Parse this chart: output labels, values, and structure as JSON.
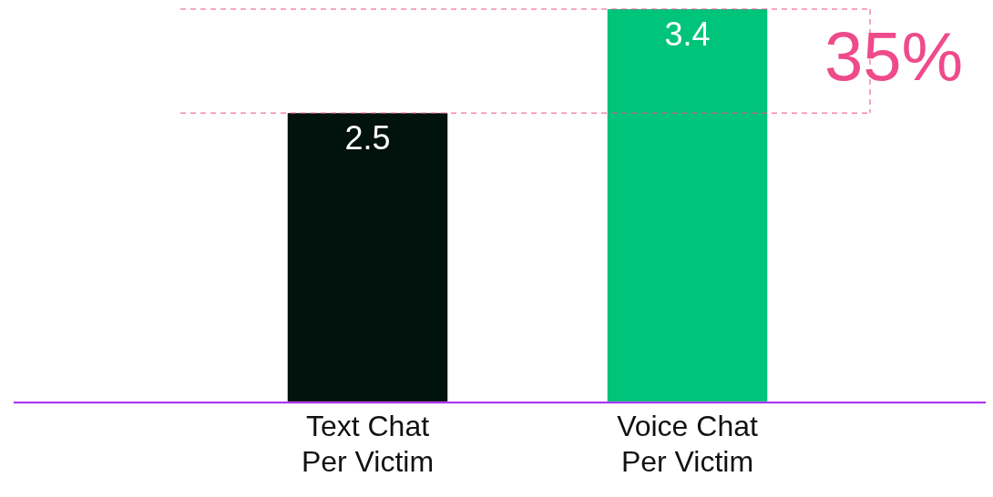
{
  "chart_data": {
    "type": "bar",
    "categories": [
      "Text Chat\nPer Victim",
      "Voice Chat\nPer Victim"
    ],
    "values": [
      2.5,
      3.4
    ],
    "colors": [
      "#02120c",
      "#00c47a"
    ],
    "ylim": [
      0,
      3.4
    ],
    "data_labels": true,
    "tick_labels": "x",
    "grid": false,
    "legend": false,
    "ref_lines": [
      {
        "axis": "y",
        "value": 3.4,
        "color": "#ee4b8b",
        "line_style": "dashed"
      },
      {
        "axis": "y",
        "value": 2.5,
        "color": "#ee4b8b",
        "line_style": "dashed"
      }
    ],
    "annotations": [
      "35%"
    ]
  }
}
